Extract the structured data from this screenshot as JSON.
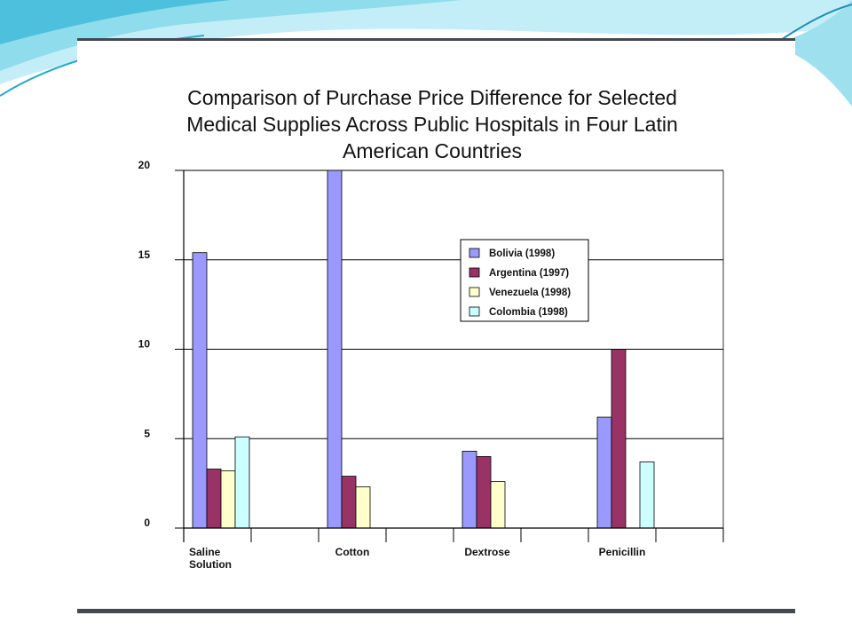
{
  "colors": {
    "panel_border": "#444850",
    "wave_light": "#bfeef6",
    "wave_mid": "#7fd6e8",
    "wave_dark": "#2aa9c9",
    "gridline": "#000000",
    "axis": "#000000"
  },
  "chart_data": {
    "type": "bar",
    "title_lines": [
      "Comparison of Purchase Price Difference for Selected",
      "Medical Supplies Across Public Hospitals in Four Latin",
      "American Countries"
    ],
    "xlabel": "",
    "ylabel": "",
    "ylim": [
      0,
      20
    ],
    "yticks": [
      0,
      5,
      10,
      15,
      20
    ],
    "grid": true,
    "legend_position": "upper-right-inside",
    "categories": [
      [
        "Saline",
        "Solution"
      ],
      [
        "Cotton"
      ],
      [
        "Dextrose"
      ],
      [
        "Penicillin"
      ]
    ],
    "series": [
      {
        "name": "Bolivia (1998)",
        "color": "#9999ff",
        "values": [
          15.4,
          20,
          4.3,
          6.2
        ]
      },
      {
        "name": "Argentina (1997)",
        "color": "#993366",
        "values": [
          3.3,
          2.9,
          4.0,
          10.0
        ]
      },
      {
        "name": "Venezuela (1998)",
        "color": "#ffffcc",
        "values": [
          3.2,
          2.3,
          2.6,
          null
        ]
      },
      {
        "name": "Colombia (1998)",
        "color": "#ccffff",
        "values": [
          5.1,
          null,
          null,
          3.7
        ]
      }
    ]
  }
}
